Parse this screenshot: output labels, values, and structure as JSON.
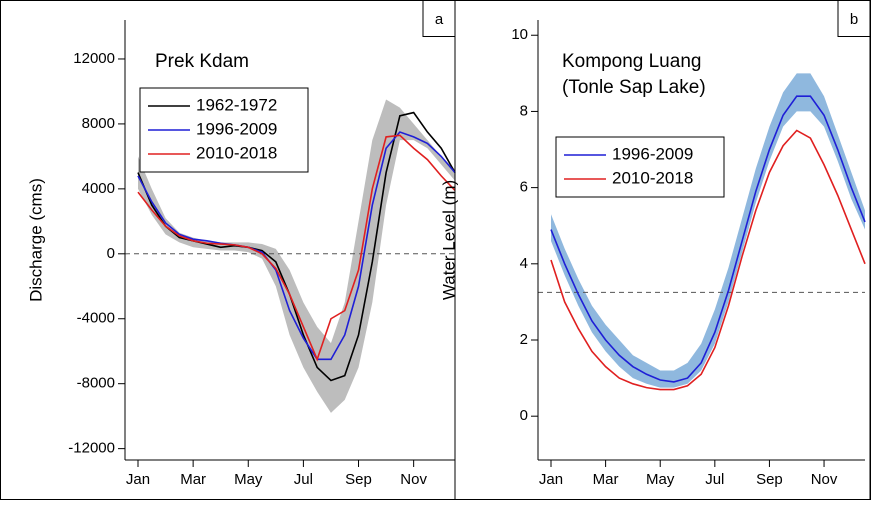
{
  "chart_data": [
    {
      "type": "line",
      "panel_label": "a",
      "title": [
        "Prek Kdam"
      ],
      "y_label": "Discharge (cms)",
      "categories": [
        "Jan",
        null,
        null,
        null,
        "Mar",
        null,
        null,
        null,
        "May",
        null,
        null,
        null,
        "Jul",
        null,
        null,
        null,
        "Sep",
        null,
        null,
        null,
        "Nov",
        null,
        null,
        null
      ],
      "ylim": [
        -12700,
        14400
      ],
      "yticks": [
        -12000,
        -8000,
        -4000,
        0,
        4000,
        8000,
        12000
      ],
      "hline": 0,
      "band": {
        "color": "#bdbdbd",
        "low": [
          4000,
          2400,
          1200,
          700,
          400,
          300,
          200,
          200,
          100,
          -300,
          -2000,
          -5000,
          -7000,
          -8500,
          -9800,
          -9000,
          -7000,
          -3000,
          3000,
          7000,
          7000,
          6500,
          5500,
          4500
        ],
        "high": [
          6000,
          4000,
          2200,
          1300,
          1000,
          800,
          700,
          700,
          700,
          600,
          300,
          -1000,
          -3000,
          -4500,
          -5500,
          -3000,
          2000,
          7000,
          9500,
          9000,
          8000,
          7000,
          6000,
          5200
        ]
      },
      "series": [
        {
          "name": "1962-1972",
          "color": "#000000",
          "values": [
            5000,
            3000,
            1700,
            1000,
            800,
            600,
            400,
            500,
            400,
            200,
            -500,
            -2500,
            -5000,
            -7000,
            -7800,
            -7500,
            -5000,
            -500,
            5000,
            8500,
            8700,
            7500,
            6500,
            5000
          ]
        },
        {
          "name": "1996-2009",
          "color": "#1f1fd6",
          "values": [
            4800,
            3200,
            1900,
            1200,
            900,
            800,
            650,
            550,
            400,
            100,
            -1000,
            -3500,
            -5200,
            -6500,
            -6500,
            -5000,
            -2000,
            3000,
            6500,
            7500,
            7200,
            6800,
            6000,
            5000
          ]
        },
        {
          "name": "2010-2018",
          "color": "#e02020",
          "values": [
            3800,
            2700,
            1700,
            1100,
            800,
            650,
            600,
            550,
            400,
            0,
            -900,
            -2500,
            -4500,
            -6500,
            -4000,
            -3500,
            -1000,
            4000,
            7200,
            7300,
            6500,
            5800,
            4800,
            3900
          ]
        }
      ]
    },
    {
      "type": "line",
      "panel_label": "b",
      "title": [
        "Kompong Luang",
        "(Tonle Sap Lake)"
      ],
      "y_label": "Water Level (m)",
      "categories": [
        "Jan",
        null,
        null,
        null,
        "Mar",
        null,
        null,
        null,
        "May",
        null,
        null,
        null,
        "Jul",
        null,
        null,
        null,
        "Sep",
        null,
        null,
        null,
        "Nov",
        null,
        null,
        null
      ],
      "ylim": [
        -1.15,
        10.4
      ],
      "yticks": [
        0,
        2,
        4,
        6,
        8,
        10
      ],
      "hline": 3.25,
      "band": {
        "color": "#8fb8de",
        "low": [
          4.6,
          3.7,
          2.9,
          2.2,
          1.7,
          1.3,
          1.0,
          0.85,
          0.75,
          0.75,
          0.85,
          1.2,
          1.9,
          3.0,
          4.3,
          5.6,
          6.7,
          7.6,
          8.0,
          8.0,
          7.6,
          6.7,
          5.7,
          4.9
        ],
        "high": [
          5.3,
          4.4,
          3.6,
          2.9,
          2.4,
          2.0,
          1.6,
          1.4,
          1.2,
          1.2,
          1.4,
          1.9,
          2.8,
          3.9,
          5.2,
          6.5,
          7.6,
          8.5,
          9.0,
          9.0,
          8.4,
          7.4,
          6.4,
          5.4
        ]
      },
      "series": [
        {
          "name": "1996-2009",
          "color": "#1f1fd6",
          "values": [
            4.9,
            4.0,
            3.2,
            2.5,
            2.0,
            1.6,
            1.3,
            1.1,
            0.95,
            0.9,
            1.0,
            1.4,
            2.2,
            3.3,
            4.6,
            5.9,
            7.0,
            7.9,
            8.4,
            8.4,
            7.9,
            7.0,
            6.0,
            5.1
          ]
        },
        {
          "name": "2010-2018",
          "color": "#e02020",
          "values": [
            4.1,
            3.0,
            2.3,
            1.7,
            1.3,
            1.0,
            0.85,
            0.75,
            0.7,
            0.7,
            0.8,
            1.1,
            1.8,
            2.9,
            4.2,
            5.4,
            6.4,
            7.1,
            7.5,
            7.3,
            6.6,
            5.8,
            4.9,
            4.0
          ]
        }
      ]
    }
  ]
}
